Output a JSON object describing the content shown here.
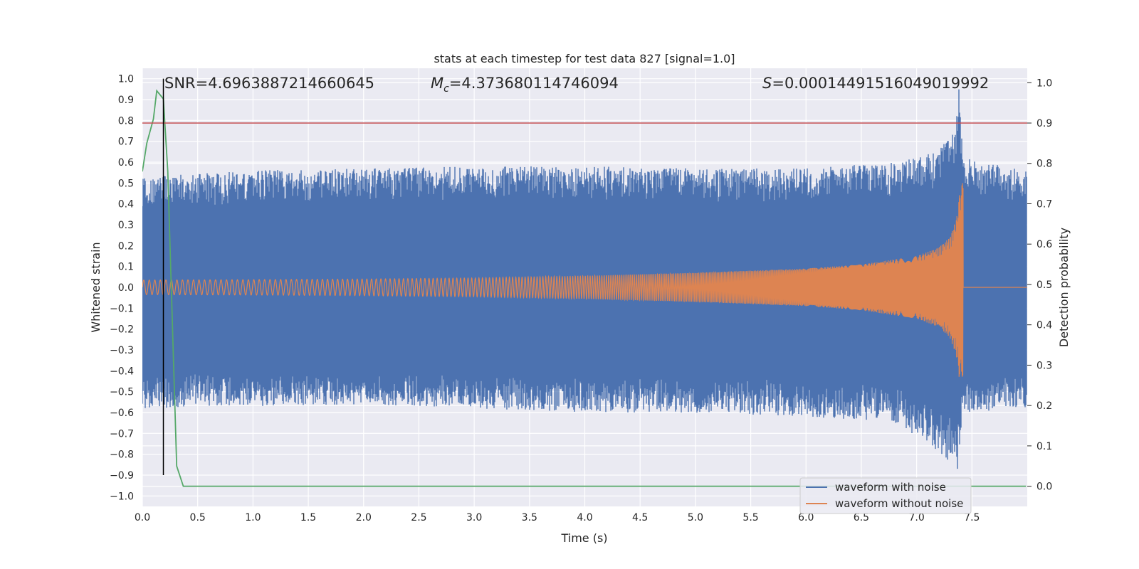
{
  "chart_data": {
    "type": "line",
    "title": "stats at each timestep for test data 827 [signal=1.0]",
    "xlabel": "Time (s)",
    "ylabel": "Whitened strain",
    "y2label": "Detection probability",
    "xlim": [
      0.0,
      8.0
    ],
    "ylim": [
      -1.05,
      1.05
    ],
    "y2lim": [
      -0.05,
      1.0357
    ],
    "xticks": [
      "0.0",
      "0.5",
      "1.0",
      "1.5",
      "2.0",
      "2.5",
      "3.0",
      "3.5",
      "4.0",
      "4.5",
      "5.0",
      "5.5",
      "6.0",
      "6.5",
      "7.0",
      "7.5"
    ],
    "yticks": [
      "1.0",
      "0.9",
      "0.8",
      "0.7",
      "0.6",
      "0.5",
      "0.4",
      "0.3",
      "0.2",
      "0.1",
      "0.0",
      "−0.1",
      "−0.2",
      "−0.3",
      "−0.4",
      "−0.5",
      "−0.6",
      "−0.7",
      "−0.8",
      "−0.9",
      "−1.0"
    ],
    "y2ticks": [
      "1.0",
      "0.9",
      "0.8",
      "0.7",
      "0.6",
      "0.5",
      "0.4",
      "0.3",
      "0.2",
      "0.1",
      "0.0"
    ],
    "grid": true,
    "legend_position": "lower-right",
    "annotations": {
      "snr": "SNR=4.6963887214660645",
      "mc_symbol": "M",
      "mc_sub": "c",
      "mc_value": "=4.373680114746094",
      "s_symbol": "S",
      "s_value": "=0.00014491516049019992"
    },
    "series": [
      {
        "name": "waveform with noise",
        "color": "#4c72b0",
        "axis": "left",
        "kind": "noise-band",
        "x_range": [
          0.0,
          7.99
        ],
        "band_upper": [
          [
            0.0,
            0.53
          ],
          [
            1.0,
            0.56
          ],
          [
            2.0,
            0.57
          ],
          [
            3.0,
            0.58
          ],
          [
            4.0,
            0.58
          ],
          [
            5.0,
            0.57
          ],
          [
            6.0,
            0.57
          ],
          [
            6.8,
            0.6
          ],
          [
            7.2,
            0.65
          ],
          [
            7.35,
            0.78
          ],
          [
            7.38,
            1.0
          ],
          [
            7.42,
            0.62
          ],
          [
            7.99,
            0.56
          ]
        ],
        "band_lower": [
          [
            0.0,
            -0.58
          ],
          [
            1.0,
            -0.57
          ],
          [
            2.0,
            -0.56
          ],
          [
            3.0,
            -0.58
          ],
          [
            4.0,
            -0.6
          ],
          [
            5.0,
            -0.6
          ],
          [
            6.0,
            -0.62
          ],
          [
            6.8,
            -0.65
          ],
          [
            7.1,
            -0.75
          ],
          [
            7.35,
            -0.86
          ],
          [
            7.38,
            -0.88
          ],
          [
            7.42,
            -0.6
          ],
          [
            7.99,
            -0.58
          ]
        ]
      },
      {
        "name": "waveform without noise",
        "color": "#dd8452",
        "axis": "left",
        "kind": "chirp",
        "envelope": [
          [
            0.0,
            0.035
          ],
          [
            1.0,
            0.037
          ],
          [
            2.0,
            0.04
          ],
          [
            3.0,
            0.045
          ],
          [
            4.0,
            0.055
          ],
          [
            5.0,
            0.07
          ],
          [
            6.0,
            0.09
          ],
          [
            6.5,
            0.11
          ],
          [
            7.0,
            0.15
          ],
          [
            7.2,
            0.19
          ],
          [
            7.3,
            0.24
          ],
          [
            7.36,
            0.33
          ],
          [
            7.4,
            0.5
          ],
          [
            7.42,
            0.5
          ],
          [
            7.43,
            0.004
          ],
          [
            7.99,
            0.004
          ]
        ],
        "lower_dip": -0.43,
        "f_start_hz": 20,
        "f_end_hz": 60,
        "end_time": 7.42
      },
      {
        "name": "",
        "color": "#55a868",
        "axis": "right",
        "kind": "line",
        "x": [
          0.0,
          0.04,
          0.1,
          0.13,
          0.19,
          0.23,
          0.31,
          0.37,
          1.0,
          2.0,
          3.0,
          4.0,
          5.0,
          6.0,
          7.0,
          7.99
        ],
        "y": [
          0.78,
          0.85,
          0.91,
          0.98,
          0.96,
          0.78,
          0.05,
          0.0,
          0.0,
          0.0,
          0.0,
          0.0,
          0.0,
          0.0,
          0.0,
          0.0
        ]
      }
    ],
    "hlines": [
      {
        "axis": "right",
        "y": 0.9,
        "color": "#c44e52"
      }
    ],
    "vlines": [
      {
        "axis": "left",
        "x": 0.19,
        "y_from": -0.9,
        "y_to": 1.0,
        "color": "#000000"
      }
    ]
  }
}
